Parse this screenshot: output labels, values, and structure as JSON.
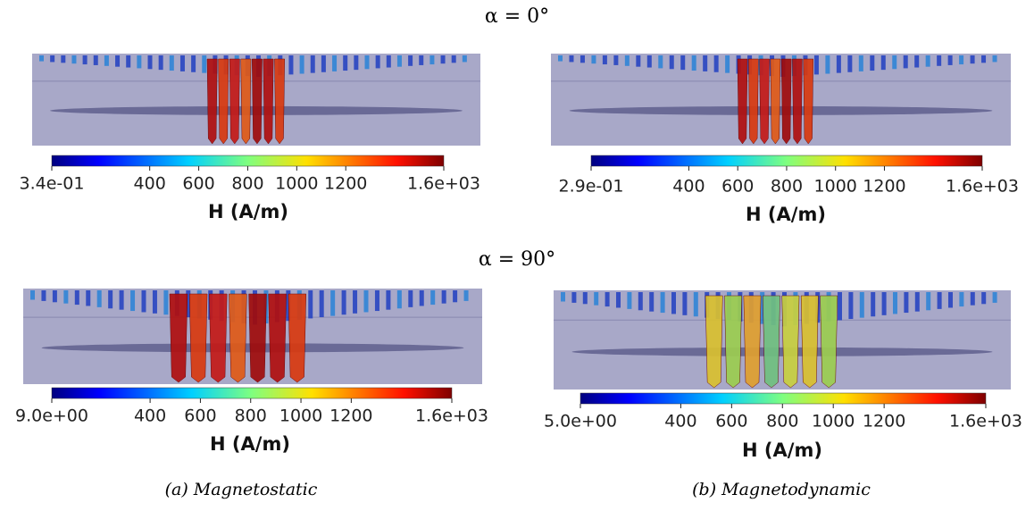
{
  "figure": {
    "rows": [
      {
        "title": "α = 0°"
      },
      {
        "title": "α = 90°"
      }
    ],
    "panels": [
      {
        "colorbar": {
          "label": "H (A/m)",
          "range": [
            0.34,
            1600
          ],
          "ticks": [
            {
              "value": 0.34,
              "label": "3.4e-01"
            },
            400,
            600,
            800,
            1000,
            1200,
            {
              "value": 1600,
              "label": "1.6e+03"
            }
          ]
        }
      },
      {
        "colorbar": {
          "label": "H (A/m)",
          "range": [
            0.29,
            1600
          ],
          "ticks": [
            {
              "value": 0.29,
              "label": "2.9e-01"
            },
            400,
            600,
            800,
            1000,
            1200,
            {
              "value": 1600,
              "label": "1.6e+03"
            }
          ]
        }
      },
      {
        "colorbar": {
          "label": "H (A/m)",
          "range": [
            9,
            1600
          ],
          "ticks": [
            {
              "value": 9,
              "label": "9.0e+00"
            },
            400,
            600,
            800,
            1000,
            1200,
            {
              "value": 1600,
              "label": "1.6e+03"
            }
          ]
        }
      },
      {
        "colorbar": {
          "label": "H (A/m)",
          "range": [
            5,
            1600
          ],
          "ticks": [
            {
              "value": 5,
              "label": "5.0e+00"
            },
            400,
            600,
            800,
            1000,
            1200,
            {
              "value": 1600,
              "label": "1.6e+03"
            }
          ]
        }
      }
    ],
    "captions": [
      "(a) Magnetostatic",
      "(b) Magnetodynamic"
    ]
  }
}
